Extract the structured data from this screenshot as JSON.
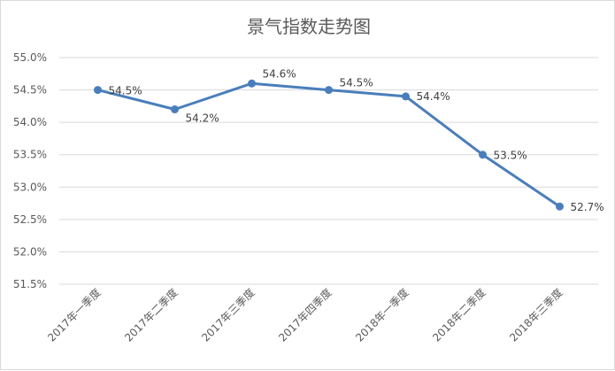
{
  "chart_data": {
    "type": "line",
    "title": "景气指数走势图",
    "categories": [
      "2017年一季度",
      "2017年二季度",
      "2017年三季度",
      "2017年四季度",
      "2018年一季度",
      "2018年二季度",
      "2018年三季度"
    ],
    "series": [
      {
        "values": [
          54.5,
          54.2,
          54.6,
          54.5,
          54.4,
          53.5,
          52.7
        ],
        "data_labels": [
          "54.5%",
          "54.2%",
          "54.6%",
          "54.5%",
          "54.4%",
          "53.5%",
          "52.7%"
        ],
        "color": "#4a7ebb"
      }
    ],
    "y_ticks": [
      "55.0%",
      "54.5%",
      "54.0%",
      "53.5%",
      "53.0%",
      "52.5%",
      "52.0%",
      "51.5%"
    ],
    "ylim": [
      51.5,
      55.0
    ],
    "grid": true,
    "legend": "none"
  }
}
